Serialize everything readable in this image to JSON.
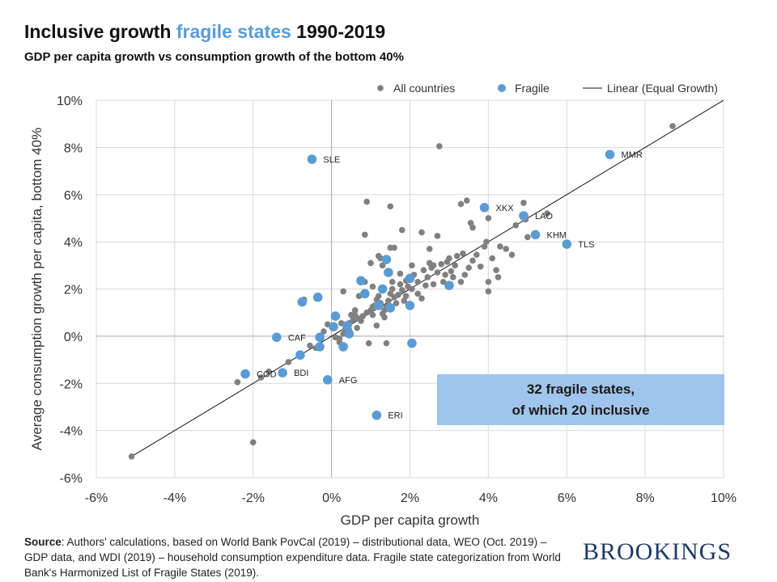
{
  "header": {
    "title_part1": "Inclusive growth ",
    "title_highlight": "fragile states",
    "title_part3": " 1990-2019",
    "subtitle": "GDP per capita growth vs consumption growth of the bottom 40%"
  },
  "callout": {
    "line1": "32 fragile states,",
    "line2": "of which 20 inclusive"
  },
  "footer": {
    "source_label": "Source",
    "source_text": ": Authors' calculations, based on World Bank PovCal (2019) – distributional data, WEO (Oct. 2019) – GDP data, and WDI (2019) – household consumption expenditure data. Fragile state categorization from World Bank's Harmonized List of Fragile States (2019).",
    "brand": "BROOKINGS"
  },
  "chart_data": {
    "type": "scatter",
    "title": "Inclusive growth fragile states 1990-2019",
    "subtitle": "GDP per capita growth vs consumption growth of the bottom 40%",
    "xlabel": "GDP per capita growth",
    "ylabel": "Average consumption growth per capita, bottom 40%",
    "xlim": [
      -6,
      10
    ],
    "ylim": [
      -6,
      10
    ],
    "x_ticks": [
      -6,
      -4,
      -2,
      0,
      2,
      4,
      6,
      8,
      10
    ],
    "y_ticks": [
      -6,
      -4,
      -2,
      0,
      2,
      4,
      6,
      8,
      10
    ],
    "x_tick_labels": [
      "-6%",
      "-4%",
      "-2%",
      "0%",
      "2%",
      "4%",
      "6%",
      "8%",
      "10%"
    ],
    "y_tick_labels": [
      "-6%",
      "-4%",
      "-2%",
      "0%",
      "2%",
      "4%",
      "6%",
      "8%",
      "10%"
    ],
    "grid": true,
    "legend_position": "top",
    "legend": [
      {
        "label": "All countries",
        "kind": "dot",
        "color": "#808080"
      },
      {
        "label": "Fragile",
        "kind": "dot",
        "color": "#5b9bd5"
      },
      {
        "label": "Linear (Equal Growth)",
        "kind": "line",
        "color": "#111111"
      }
    ],
    "line": {
      "name": "Linear (Equal Growth)",
      "x": [
        -5.1,
        10
      ],
      "y": [
        -5.1,
        10
      ]
    },
    "series": [
      {
        "name": "All countries",
        "color": "#808080",
        "points": [
          [
            -5.1,
            -5.1
          ],
          [
            -2.0,
            -4.5
          ],
          [
            -2.4,
            -1.95
          ],
          [
            -1.8,
            -1.75
          ],
          [
            -1.6,
            -1.5
          ],
          [
            -1.1,
            -1.1
          ],
          [
            -0.8,
            -0.75
          ],
          [
            -0.4,
            -0.5
          ],
          [
            -0.7,
            1.55
          ],
          [
            -0.75,
            1.4
          ],
          [
            0.1,
            -0.05
          ],
          [
            0.2,
            -0.1
          ],
          [
            0.3,
            0.1
          ],
          [
            0.35,
            0.3
          ],
          [
            0.45,
            0.55
          ],
          [
            0.55,
            0.7
          ],
          [
            0.6,
            0.9
          ],
          [
            0.7,
            0.75
          ],
          [
            0.8,
            0.85
          ],
          [
            0.9,
            1.0
          ],
          [
            1.0,
            1.1
          ],
          [
            1.05,
            0.9
          ],
          [
            1.1,
            1.3
          ],
          [
            1.15,
            1.55
          ],
          [
            1.2,
            1.7
          ],
          [
            1.25,
            1.4
          ],
          [
            1.3,
            0.95
          ],
          [
            1.35,
            1.1
          ],
          [
            1.4,
            1.25
          ],
          [
            1.45,
            1.5
          ],
          [
            1.5,
            1.8
          ],
          [
            1.55,
            2.0
          ],
          [
            1.6,
            1.65
          ],
          [
            1.65,
            1.4
          ],
          [
            1.7,
            1.75
          ],
          [
            1.75,
            2.2
          ],
          [
            1.8,
            1.95
          ],
          [
            1.85,
            1.5
          ],
          [
            1.9,
            1.7
          ],
          [
            1.95,
            2.1
          ],
          [
            2.0,
            2.4
          ],
          [
            2.05,
            2.0
          ],
          [
            2.1,
            2.6
          ],
          [
            2.2,
            2.3
          ],
          [
            2.3,
            1.6
          ],
          [
            2.35,
            2.8
          ],
          [
            2.4,
            2.15
          ],
          [
            2.45,
            2.5
          ],
          [
            2.5,
            3.1
          ],
          [
            2.55,
            2.9
          ],
          [
            2.6,
            3.0
          ],
          [
            2.7,
            2.7
          ],
          [
            2.8,
            3.05
          ],
          [
            2.85,
            2.3
          ],
          [
            2.9,
            2.6
          ],
          [
            3.0,
            3.3
          ],
          [
            3.05,
            2.75
          ],
          [
            3.1,
            2.5
          ],
          [
            3.2,
            3.4
          ],
          [
            3.3,
            2.3
          ],
          [
            3.4,
            2.6
          ],
          [
            3.5,
            2.9
          ],
          [
            3.6,
            3.2
          ],
          [
            3.7,
            3.45
          ],
          [
            3.8,
            2.95
          ],
          [
            3.9,
            3.8
          ],
          [
            4.0,
            2.3
          ],
          [
            4.0,
            1.9
          ],
          [
            4.1,
            3.3
          ],
          [
            4.2,
            2.8
          ],
          [
            4.25,
            2.5
          ],
          [
            4.3,
            3.8
          ],
          [
            4.45,
            3.7
          ],
          [
            4.6,
            3.45
          ],
          [
            4.7,
            4.7
          ],
          [
            4.9,
            5.65
          ],
          [
            4.95,
            4.95
          ],
          [
            5.0,
            4.2
          ],
          [
            5.5,
            5.2
          ],
          [
            8.7,
            8.9
          ],
          [
            2.75,
            8.05
          ],
          [
            0.9,
            5.7
          ],
          [
            1.5,
            5.5
          ],
          [
            3.45,
            5.75
          ],
          [
            3.3,
            5.6
          ],
          [
            4.0,
            5.0
          ],
          [
            0.85,
            4.3
          ],
          [
            1.8,
            4.5
          ],
          [
            2.3,
            4.4
          ],
          [
            2.7,
            4.25
          ],
          [
            3.55,
            4.8
          ],
          [
            3.6,
            4.6
          ],
          [
            3.95,
            4.0
          ],
          [
            1.5,
            3.75
          ],
          [
            1.6,
            3.75
          ],
          [
            2.5,
            3.7
          ],
          [
            1.2,
            3.4
          ],
          [
            1.25,
            3.3
          ],
          [
            1.0,
            3.1
          ],
          [
            1.3,
            3.0
          ],
          [
            0.3,
            1.9
          ],
          [
            0.7,
            1.7
          ],
          [
            0.5,
            0.9
          ],
          [
            0.6,
            1.1
          ],
          [
            0.2,
            -0.25
          ],
          [
            0.95,
            -0.3
          ],
          [
            1.4,
            -0.3
          ],
          [
            -0.1,
            0.5
          ],
          [
            0.45,
            0.25
          ],
          [
            0.75,
            0.65
          ],
          [
            1.05,
            1.25
          ],
          [
            1.35,
            0.8
          ],
          [
            1.15,
            0.45
          ],
          [
            0.25,
            0.55
          ],
          [
            0.65,
            0.35
          ],
          [
            -0.2,
            0.2
          ],
          [
            -0.55,
            -0.4
          ],
          [
            1.9,
            2.35
          ],
          [
            2.2,
            1.8
          ],
          [
            2.6,
            2.2
          ],
          [
            3.15,
            3.0
          ],
          [
            2.95,
            3.15
          ],
          [
            3.35,
            3.5
          ],
          [
            0.85,
            2.3
          ],
          [
            1.55,
            2.3
          ],
          [
            1.05,
            2.1
          ],
          [
            1.75,
            2.65
          ],
          [
            2.05,
            3.0
          ]
        ]
      },
      {
        "name": "Fragile",
        "color": "#5b9bd5",
        "points": [
          {
            "x": -0.5,
            "y": 7.5,
            "label": "SLE"
          },
          {
            "x": 7.1,
            "y": 7.7,
            "label": "MMR"
          },
          {
            "x": 3.9,
            "y": 5.45,
            "label": "XKX"
          },
          {
            "x": 4.9,
            "y": 5.1,
            "label": "LAO"
          },
          {
            "x": 5.2,
            "y": 4.3,
            "label": "KHM"
          },
          {
            "x": 6.0,
            "y": 3.9,
            "label": "TLS"
          },
          {
            "x": -1.4,
            "y": -0.05,
            "label": "CAF"
          },
          {
            "x": -2.2,
            "y": -1.6,
            "label": "COD"
          },
          {
            "x": -1.25,
            "y": -1.55,
            "label": "BDI"
          },
          {
            "x": -0.1,
            "y": -1.85,
            "label": "AFG"
          },
          {
            "x": 1.15,
            "y": -3.35,
            "label": "ERI"
          },
          {
            "x": -0.35,
            "y": 1.65
          },
          {
            "x": -0.75,
            "y": 1.45
          },
          {
            "x": -0.8,
            "y": -0.8
          },
          {
            "x": -0.3,
            "y": -0.45
          },
          {
            "x": -0.3,
            "y": -0.05
          },
          {
            "x": 0.05,
            "y": 0.4
          },
          {
            "x": 0.1,
            "y": 0.85
          },
          {
            "x": 0.3,
            "y": -0.45
          },
          {
            "x": 0.4,
            "y": 0.45
          },
          {
            "x": 0.45,
            "y": 0.1
          },
          {
            "x": 0.75,
            "y": 2.35
          },
          {
            "x": 0.85,
            "y": 1.8
          },
          {
            "x": 1.2,
            "y": 1.3
          },
          {
            "x": 1.3,
            "y": 2.0
          },
          {
            "x": 1.4,
            "y": 3.25
          },
          {
            "x": 1.45,
            "y": 2.7
          },
          {
            "x": 1.5,
            "y": 1.2
          },
          {
            "x": 2.0,
            "y": 2.45
          },
          {
            "x": 2.0,
            "y": 1.3
          },
          {
            "x": 2.05,
            "y": -0.3
          },
          {
            "x": 3.0,
            "y": 2.15
          }
        ]
      }
    ]
  }
}
